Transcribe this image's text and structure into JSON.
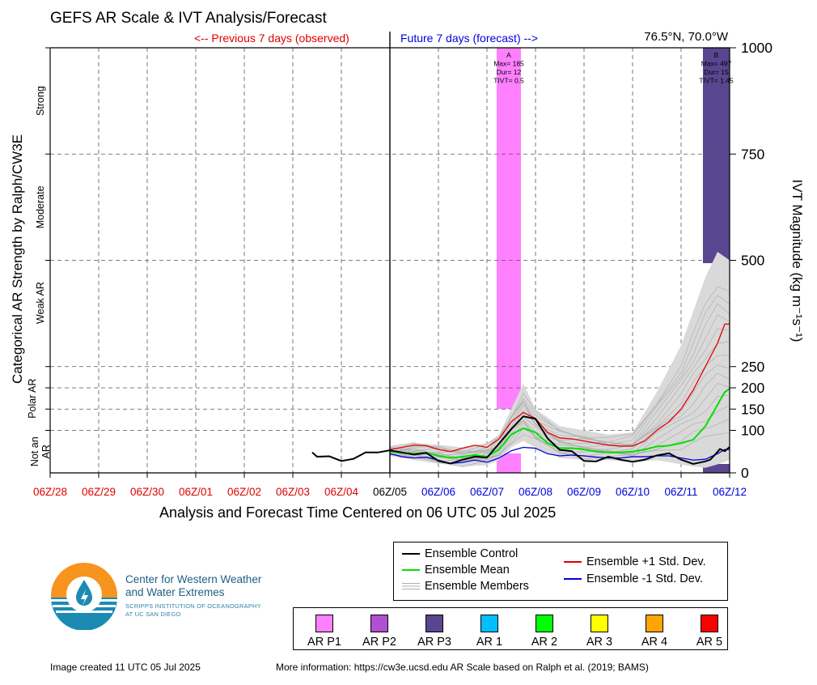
{
  "header": {
    "title": "GEFS AR Scale & IVT Analysis/Forecast",
    "previous_label": "<-- Previous 7 days (observed)",
    "future_label": "Future 7 days (forecast) -->",
    "coordinates": "76.5°N, 70.0°W"
  },
  "colors": {
    "control": "#000000",
    "mean": "#00e000",
    "members": "#b0b0b0",
    "plus_sd": "#e00000",
    "minus_sd": "#0000dd",
    "observed_tick": "#e00000",
    "forecast_tick": "#0000dd",
    "ar_p1": "#ff80ff",
    "ar_p2": "#b050d0",
    "ar_p3": "#5a4590",
    "ar_1": "#00bfff",
    "ar_2": "#00ff00",
    "ar_3": "#ffff00",
    "ar_4": "#ffa500",
    "ar_5": "#ff0000"
  },
  "chart_data": {
    "type": "line",
    "x_axis": {
      "title": "Analysis and Forecast Time Centered on 06 UTC 05 Jul 2025",
      "ticks": [
        "06Z/28",
        "06Z/29",
        "06Z/30",
        "06Z/01",
        "06Z/02",
        "06Z/03",
        "06Z/04",
        "06Z/05",
        "06Z/06",
        "06Z/07",
        "06Z/08",
        "06Z/09",
        "06Z/10",
        "06Z/11",
        "06Z/12"
      ],
      "unit_note": "x values are days relative to 06Z/28 tick",
      "range": [
        0,
        14
      ]
    },
    "y_axis_right": {
      "title": "IVT Magnitude (kg m⁻¹s⁻¹)",
      "ticks": [
        0,
        100,
        150,
        200,
        250,
        500,
        750,
        1000
      ],
      "range": [
        0,
        1000
      ]
    },
    "y_axis_left": {
      "title": "Categorical AR Strength by Ralph/CW3E",
      "categories": [
        {
          "label": "Strong",
          "y": 875
        },
        {
          "label": "Moderate",
          "y": 625
        },
        {
          "label": "Weak AR",
          "y": 400
        },
        {
          "label": "Polar AR",
          "y": 175
        },
        {
          "label": "Not an AR",
          "y": 50
        }
      ]
    },
    "grid": true,
    "series": [
      {
        "name": "Ensemble Control",
        "x": [
          5.4,
          5.5,
          5.75,
          6.0,
          6.25,
          6.5,
          6.75,
          7.0,
          7.25,
          7.5,
          7.75,
          8.0,
          8.25,
          8.5,
          8.75,
          9.0,
          9.25,
          9.5,
          9.75,
          10.0,
          10.25,
          10.5,
          10.75,
          11.0,
          11.25,
          11.5,
          11.75,
          12.0,
          12.25,
          12.5,
          12.75,
          13.0,
          13.25,
          13.5,
          13.6,
          13.7,
          13.8,
          13.9,
          14.0
        ],
        "y": [
          48,
          38,
          39,
          28,
          33,
          48,
          48,
          53,
          48,
          43,
          47,
          28,
          22,
          31,
          38,
          36,
          69,
          103,
          133,
          127,
          81,
          54,
          51,
          28,
          27,
          38,
          31,
          26,
          31,
          41,
          46,
          31,
          21,
          27,
          31,
          43,
          56,
          51,
          61
        ]
      },
      {
        "name": "Ensemble Mean",
        "x": [
          7.0,
          7.25,
          7.5,
          7.75,
          8.0,
          8.25,
          8.5,
          8.75,
          9.0,
          9.25,
          9.5,
          9.75,
          10.0,
          10.25,
          10.5,
          10.75,
          11.0,
          11.25,
          11.5,
          11.75,
          12.0,
          12.25,
          12.5,
          12.75,
          13.0,
          13.25,
          13.5,
          13.75,
          13.9,
          14.0
        ],
        "y": [
          50,
          47,
          45,
          47,
          40,
          35,
          38,
          42,
          38,
          55,
          90,
          105,
          95,
          70,
          58,
          58,
          55,
          50,
          48,
          48,
          50,
          55,
          62,
          64,
          70,
          78,
          110,
          160,
          190,
          198
        ]
      },
      {
        "name": "Ensemble +1 Std. Dev.",
        "x": [
          7.0,
          7.25,
          7.5,
          7.75,
          8.0,
          8.25,
          8.5,
          8.75,
          9.0,
          9.25,
          9.5,
          9.75,
          10.0,
          10.25,
          10.5,
          10.75,
          11.0,
          11.25,
          11.5,
          11.75,
          12.0,
          12.25,
          12.5,
          12.75,
          13.0,
          13.25,
          13.5,
          13.75,
          13.9,
          14.0
        ],
        "y": [
          55,
          60,
          65,
          64,
          55,
          50,
          58,
          65,
          60,
          80,
          120,
          142,
          128,
          95,
          82,
          80,
          75,
          70,
          65,
          63,
          63,
          75,
          100,
          120,
          150,
          195,
          250,
          305,
          350,
          350
        ]
      },
      {
        "name": "Ensemble -1 Std. Dev.",
        "x": [
          7.0,
          7.25,
          7.5,
          7.75,
          8.0,
          8.25,
          8.5,
          8.75,
          9.0,
          9.25,
          9.5,
          9.75,
          10.0,
          10.25,
          10.5,
          10.75,
          11.0,
          11.25,
          11.5,
          11.75,
          12.0,
          12.25,
          12.5,
          12.75,
          13.0,
          13.25,
          13.5,
          13.75,
          13.9,
          14.0
        ],
        "y": [
          45,
          38,
          35,
          37,
          30,
          22,
          25,
          30,
          25,
          35,
          52,
          60,
          58,
          45,
          40,
          42,
          40,
          37,
          35,
          35,
          38,
          38,
          40,
          40,
          35,
          30,
          32,
          45,
          55,
          55
        ]
      }
    ],
    "members_band": {
      "name": "Ensemble Members",
      "x": [
        7.0,
        7.5,
        8.0,
        8.5,
        9.0,
        9.25,
        9.5,
        9.75,
        10.0,
        10.5,
        11.0,
        11.5,
        12.0,
        12.5,
        13.0,
        13.25,
        13.5,
        13.75,
        14.0
      ],
      "low": [
        40,
        30,
        22,
        15,
        18,
        30,
        60,
        75,
        60,
        35,
        30,
        30,
        25,
        30,
        20,
        15,
        12,
        20,
        30
      ],
      "high": [
        62,
        70,
        66,
        60,
        70,
        90,
        150,
        210,
        150,
        110,
        100,
        90,
        95,
        190,
        300,
        380,
        460,
        520,
        500
      ]
    },
    "ar_events": [
      {
        "id": "A",
        "max": "Max= 185",
        "dur": "Dur= 12",
        "tivt": "TIVT= 0.5",
        "category": "AR P1",
        "x_start": 9.2,
        "x_end": 9.7
      },
      {
        "id": "B",
        "max": "Max= 497",
        "dur": "Dur= 15",
        "tivt": "TIVT= 1.45",
        "category": "AR P3",
        "x_start": 13.45,
        "x_end": 14.0
      }
    ]
  },
  "legend": {
    "control": "Ensemble Control",
    "mean": "Ensemble Mean",
    "members": "Ensemble Members",
    "plus_sd": "Ensemble +1 Std. Dev.",
    "minus_sd": "Ensemble -1 Std. Dev."
  },
  "ar_scale_legend": [
    "AR P1",
    "AR P2",
    "AR P3",
    "AR 1",
    "AR 2",
    "AR 3",
    "AR 4",
    "AR 5"
  ],
  "logo": {
    "line1": "Center for Western Weather",
    "line2": "and Water Extremes",
    "sub1": "SCRIPPS INSTITUTION OF OCEANOGRAPHY",
    "sub2": "AT UC SAN DIEGO"
  },
  "footer": {
    "created": "Image created 11 UTC 05 Jul 2025",
    "info": "More information: https://cw3e.ucsd.edu AR Scale based on Ralph et al. (2019; BAMS)"
  }
}
